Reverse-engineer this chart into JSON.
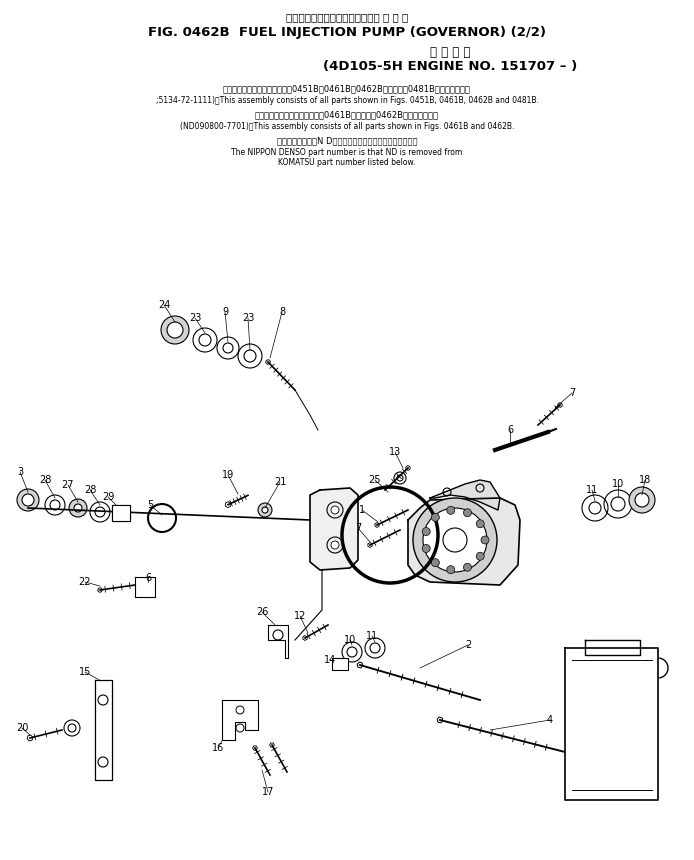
{
  "title_jp": "フェエルインジェクションポンプ ガ バ ナ",
  "title_main": "FIG. 0462B  FUEL INJECTION PUMP (GOVERNOR) (2/2)",
  "title_jp2": "適 用 号 機",
  "title_sub": "(4D105-5H ENGINE NO. 151707 – )",
  "note1_jp": "このアセンブリの構成部品は第0451B、0461B、0462B図および第0481B図を含みます。",
  "note1_en": ";5134-72-1111)：This assembly consists of all parts shown in Figs. 0451B, 0461B, 0462B and 0481B.",
  "note2_jp": "このアセンブリの構成部品は第0461B図および第0462B図を含みます。",
  "note2_en": "(ND090800-7701)：This assembly consists of all parts shown in Figs. 0461B and 0462B.",
  "note3_jp": "品番のメーカ記号N Dを除いたものが日本電装の品番です。",
  "note3_en1": "The NIPPON DENSO part number is that ND is removed from",
  "note3_en2": "KOMATSU part number listed below.",
  "bg_color": "#ffffff"
}
